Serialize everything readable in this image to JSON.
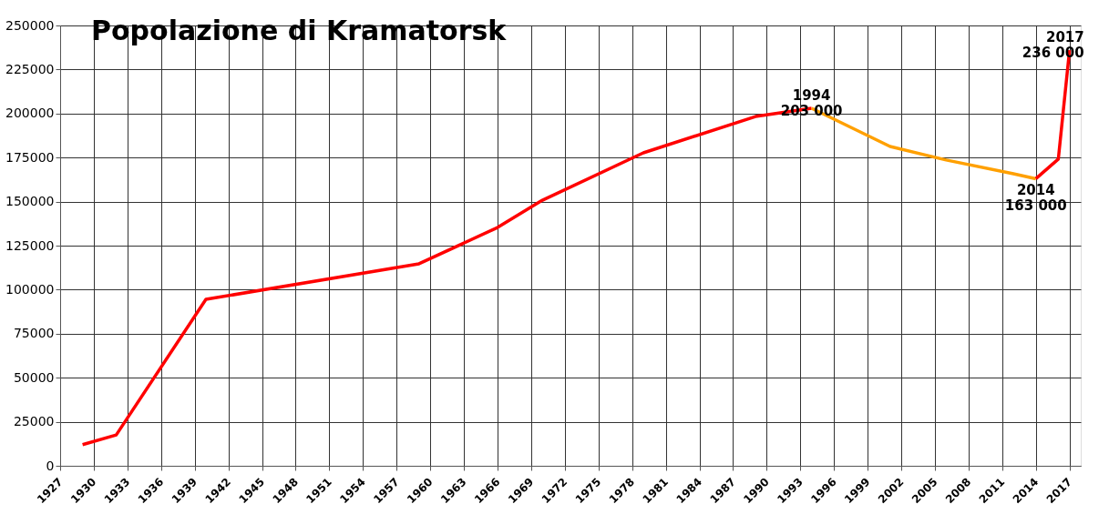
{
  "chart_data": {
    "type": "line",
    "title": "Popolazione di Kramatorsk",
    "series": [
      {
        "color": "#ff0000",
        "x": [
          1929,
          1932,
          1940,
          1959,
          1966,
          1970,
          1979,
          1989,
          1994
        ],
        "values": [
          12000,
          17500,
          94500,
          114700,
          135300,
          150800,
          177700,
          198300,
          203000
        ]
      },
      {
        "color": "#ffa000",
        "x": [
          1994,
          2001,
          2006,
          2012,
          2014
        ],
        "values": [
          203000,
          181300,
          173600,
          165800,
          163000
        ]
      },
      {
        "color": "#ff0000",
        "x": [
          2014,
          2016,
          2017
        ],
        "values": [
          163000,
          174100,
          236000
        ]
      }
    ],
    "annotations": [
      {
        "text": "1994\n203 000",
        "x": 1994,
        "y": 203000
      },
      {
        "text": "2014\n163 000",
        "x": 2014,
        "y": 163000
      },
      {
        "text": "2017\n236 000",
        "x": 2017,
        "y": 236000
      }
    ],
    "xlim": [
      1927,
      2018
    ],
    "xticks": [
      1927,
      1930,
      1933,
      1936,
      1939,
      1942,
      1945,
      1948,
      1951,
      1954,
      1957,
      1960,
      1963,
      1966,
      1969,
      1972,
      1975,
      1978,
      1981,
      1984,
      1987,
      1990,
      1993,
      1996,
      1999,
      2002,
      2005,
      2008,
      2011,
      2014,
      2017
    ],
    "ylim": [
      0,
      250000
    ],
    "yticks": [
      0,
      25000,
      50000,
      75000,
      100000,
      125000,
      150000,
      175000,
      200000,
      225000,
      250000
    ],
    "grid": true,
    "line_style": "solid"
  }
}
